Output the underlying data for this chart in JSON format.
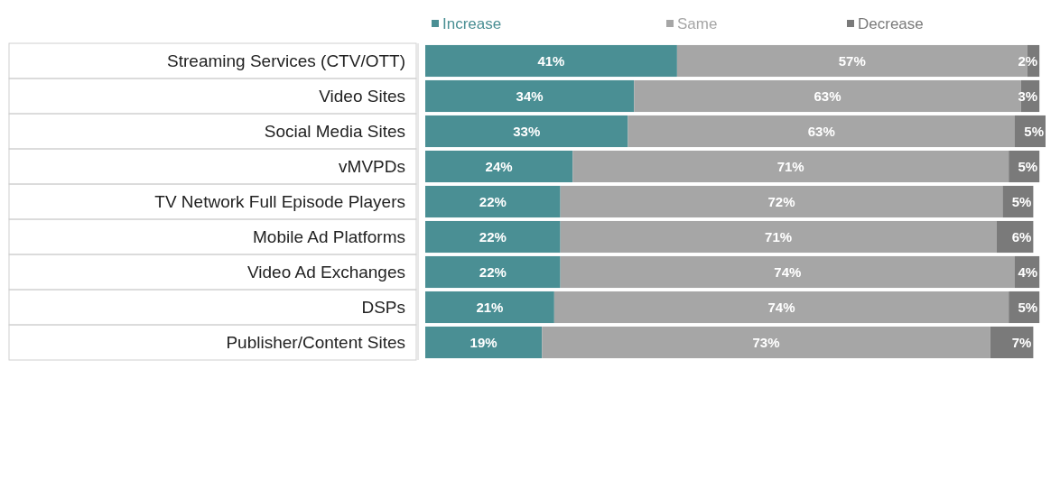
{
  "chart_data": {
    "type": "bar",
    "orientation": "horizontal",
    "stacked": true,
    "legend": "top",
    "grid": false,
    "categories": [
      "Streaming Services (CTV/OTT)",
      "Video Sites",
      "Social Media Sites",
      "vMVPDs",
      "TV Network Full Episode Players",
      "Mobile Ad Platforms",
      "Video Ad Exchanges",
      "DSPs",
      "Publisher/Content Sites"
    ],
    "series": [
      {
        "name": "Increase",
        "color": "#4a8f94",
        "values": [
          41,
          34,
          33,
          24,
          22,
          22,
          22,
          21,
          19
        ],
        "value_labels": [
          "41%",
          "34%",
          "33%",
          "24%",
          "22%",
          "22%",
          "22%",
          "21%",
          "19%"
        ]
      },
      {
        "name": "Same",
        "color": "#a6a6a6",
        "values": [
          57,
          63,
          63,
          71,
          72,
          71,
          74,
          74,
          73
        ],
        "value_labels": [
          "57%",
          "63%",
          "63%",
          "71%",
          "72%",
          "71%",
          "74%",
          "74%",
          "73%"
        ]
      },
      {
        "name": "Decrease",
        "color": "#7a7a7a",
        "values": [
          2,
          3,
          5,
          5,
          5,
          6,
          4,
          5,
          7
        ],
        "value_labels": [
          "2%",
          "3%",
          "5%",
          "5%",
          "5%",
          "6%",
          "4%",
          "5%",
          "7%"
        ]
      }
    ]
  }
}
